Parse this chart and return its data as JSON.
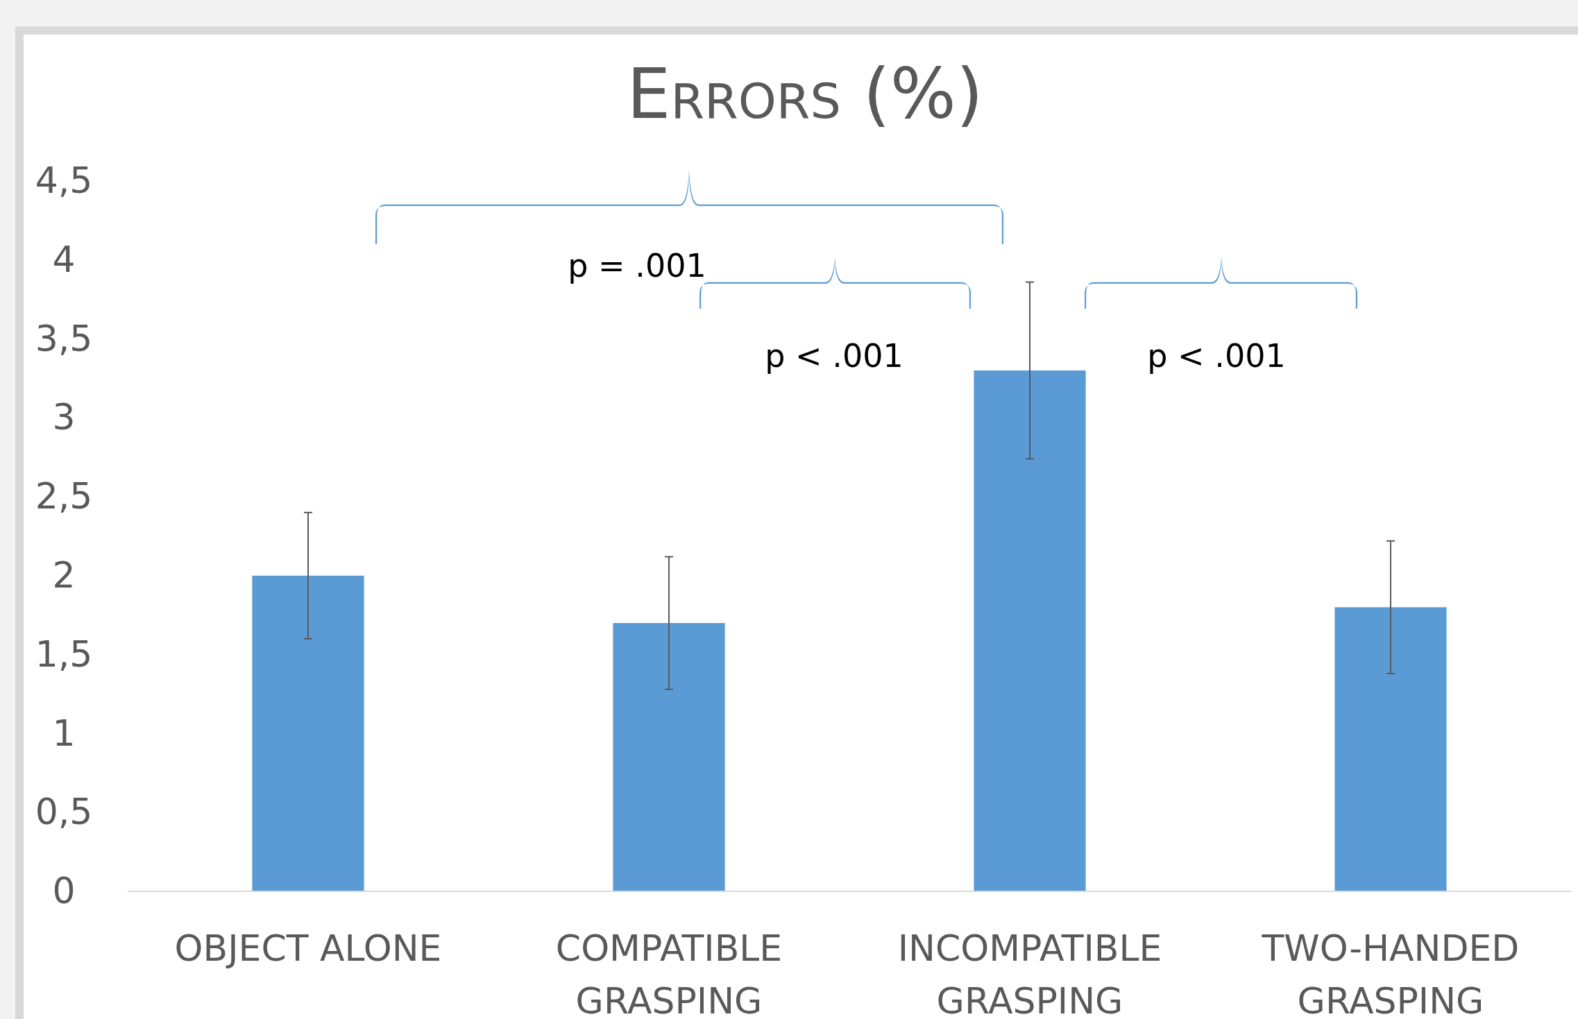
{
  "chart_data": {
    "type": "bar",
    "title": "Errors (%)",
    "categories": [
      "OBJECT ALONE",
      "COMPATIBLE GRASPING",
      "INCOMPATIBLE GRASPING",
      "TWO-HANDED GRASPING"
    ],
    "values": [
      2.0,
      1.7,
      3.3,
      1.8
    ],
    "errors": [
      0.4,
      0.42,
      0.56,
      0.42
    ],
    "color": "#5b9bd5",
    "ylim": [
      0,
      4.5
    ],
    "yticks": [
      0,
      {
        "value": 0.5,
        "label": "0,5"
      },
      1,
      {
        "value": 1.5,
        "label": "1,5"
      },
      2,
      {
        "value": 2.5,
        "label": "2,5"
      },
      3,
      {
        "value": 3.5,
        "label": "3,5"
      },
      4,
      {
        "value": 4.5,
        "label": "4,5"
      }
    ],
    "grid": false,
    "annotations": [
      "p = .001",
      "p < .001",
      "p < .001"
    ]
  }
}
